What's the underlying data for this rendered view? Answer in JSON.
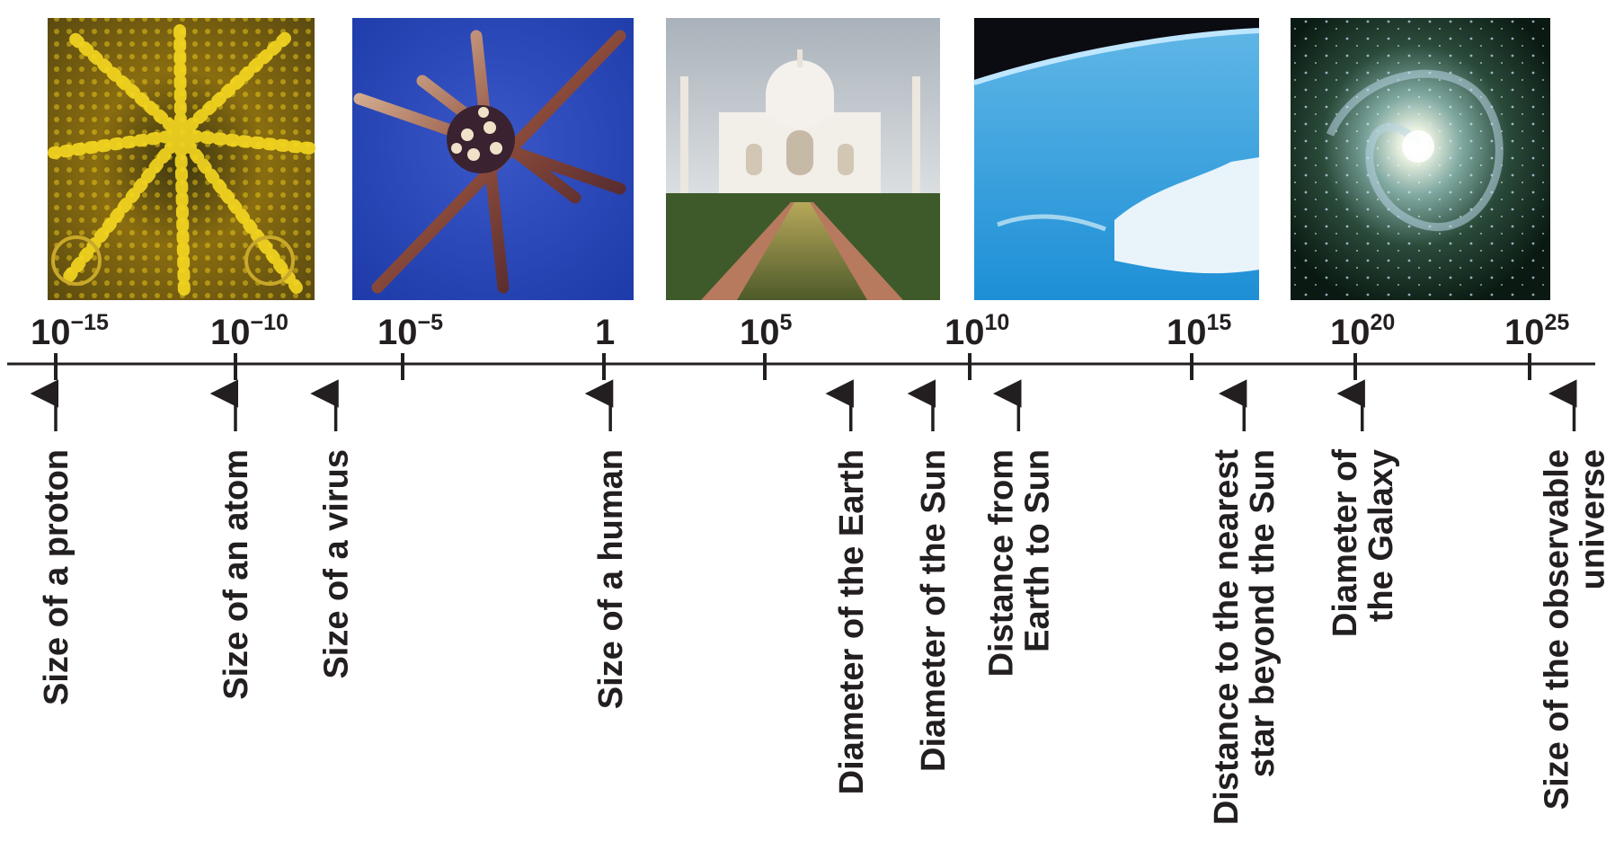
{
  "photos": [
    {
      "name": "photo-proton-field-ion",
      "subject": "proton field-ion image"
    },
    {
      "name": "photo-virus",
      "subject": "virus"
    },
    {
      "name": "photo-taj-mahal",
      "subject": "Taj Mahal"
    },
    {
      "name": "photo-earth-from-space",
      "subject": "Earth from space"
    },
    {
      "name": "photo-spiral-galaxy",
      "subject": "spiral galaxy"
    }
  ],
  "scale": {
    "unit_exponent_ticks": [
      {
        "base": "10",
        "exp": "−15",
        "value_exp": -15
      },
      {
        "base": "10",
        "exp": "−10",
        "value_exp": -10
      },
      {
        "base": "10",
        "exp": "−5",
        "value_exp": -5
      },
      {
        "base": "1",
        "exp": "",
        "value_exp": 0
      },
      {
        "base": "10",
        "exp": "5",
        "value_exp": 5
      },
      {
        "base": "10",
        "exp": "10",
        "value_exp": 10
      },
      {
        "base": "10",
        "exp": "15",
        "value_exp": 15
      },
      {
        "base": "10",
        "exp": "20",
        "value_exp": 20
      },
      {
        "base": "10",
        "exp": "25",
        "value_exp": 25
      }
    ]
  },
  "objects": [
    {
      "lines": [
        "Size of a proton"
      ],
      "value_exp": -15
    },
    {
      "lines": [
        "Size of an atom"
      ],
      "value_exp": -10
    },
    {
      "lines": [
        "Size of a virus"
      ],
      "value_exp": -7
    },
    {
      "lines": [
        "Size of a human"
      ],
      "value_exp": 0.2
    },
    {
      "lines": [
        "Diameter of the Earth"
      ],
      "value_exp": 7.1
    },
    {
      "lines": [
        "Diameter of the Sun"
      ],
      "value_exp": 9.1
    },
    {
      "lines": [
        "Distance from",
        "Earth to Sun"
      ],
      "value_exp": 11.1
    },
    {
      "lines": [
        "Distance to the nearest",
        "star beyond the Sun"
      ],
      "value_exp": 16.6
    },
    {
      "lines": [
        "Diameter of",
        "the Galaxy"
      ],
      "value_exp": 20.2
    },
    {
      "lines": [
        "Size of the observable",
        "universe"
      ],
      "value_exp": 26.5
    }
  ],
  "colors": {
    "ink": "#231f20",
    "background": "#ffffff"
  }
}
